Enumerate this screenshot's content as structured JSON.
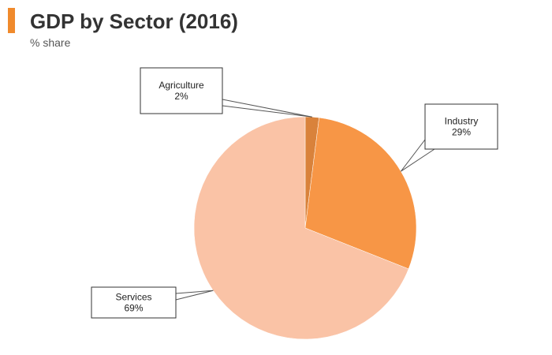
{
  "header": {
    "title": "GDP by Sector (2016)",
    "subtitle": "% share",
    "accent_color": "#f08a2c"
  },
  "chart_data": {
    "type": "pie",
    "title": "GDP by Sector (2016)",
    "subtitle": "% share",
    "unit": "%",
    "slices": [
      {
        "label": "Agriculture",
        "value": 2,
        "value_label": "2%",
        "color": "#d9823b"
      },
      {
        "label": "Industry",
        "value": 29,
        "value_label": "29%",
        "color": "#f79646"
      },
      {
        "label": "Services",
        "value": 69,
        "value_label": "69%",
        "color": "#fac3a6"
      }
    ]
  }
}
